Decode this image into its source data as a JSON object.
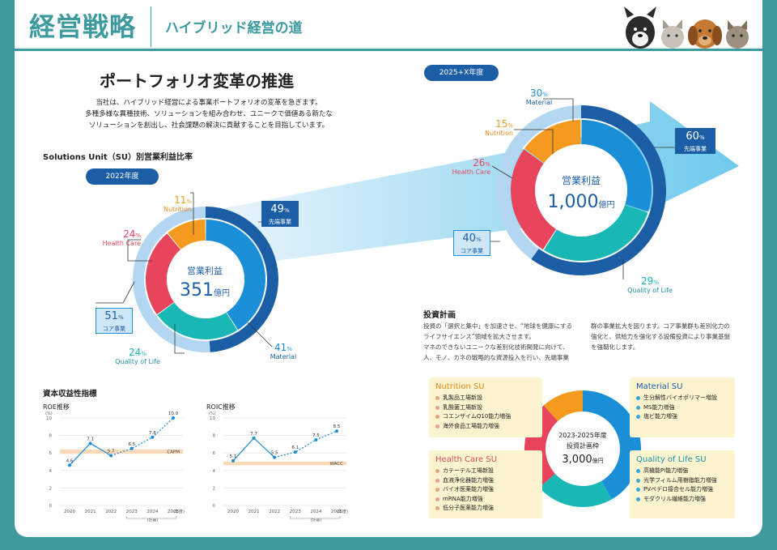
{
  "header": {
    "title": "経営戦略",
    "subtitle": "ハイブリッド経営の道"
  },
  "heading": "ポートフォリオ変革の推進",
  "intro": [
    "当社は、ハイブリッド経営による事業ポートフォリオの変革を急ぎます。",
    "多種多様な異種技術、ソリューションを組み合わせ、ユニークで価値ある新たな",
    "ソリューションを創出し、社会課題の解決に貢献することを目指しています。"
  ],
  "su_section_title": "Solutions Unit（SU）別営業利益比率",
  "colors": {
    "orange": "#f39a1f",
    "red": "#e8455c",
    "blue": "#1a8fd8",
    "teal": "#19b8b4",
    "navy": "#1c5ea6",
    "light": "#b3d7f1",
    "accent": "#3d9ba0"
  },
  "donut_2022": {
    "year_label": "2022年度",
    "center_title": "営業利益",
    "center_value": "351",
    "center_unit": "億円",
    "segments": [
      {
        "name": "先端事業",
        "value": 49,
        "pct": "49",
        "unit": "%"
      },
      {
        "name": "Material",
        "value": 41,
        "pct": "41",
        "unit": "%"
      },
      {
        "name": "Nutrition",
        "value": 11,
        "pct": "11",
        "unit": "%"
      },
      {
        "name": "Health Care",
        "value": 24,
        "pct": "24",
        "unit": "%"
      },
      {
        "name": "Quality of Life",
        "value": 24,
        "pct": "24",
        "unit": "%"
      },
      {
        "name": "コア事業",
        "value": 51,
        "pct": "51",
        "unit": "%"
      }
    ]
  },
  "donut_future": {
    "year_label": "2025+X年度",
    "center_title": "営業利益",
    "center_value": "1,000",
    "center_unit": "億円",
    "segments": [
      {
        "name": "Material",
        "value": 30,
        "pct": "30",
        "unit": "%"
      },
      {
        "name": "Nutrition",
        "value": 15,
        "pct": "15",
        "unit": "%"
      },
      {
        "name": "Health Care",
        "value": 26,
        "pct": "26",
        "unit": "%"
      },
      {
        "name": "Quality of Life",
        "value": 29,
        "pct": "29",
        "unit": "%"
      },
      {
        "name": "先端事業",
        "value": 60,
        "pct": "60",
        "unit": "%"
      },
      {
        "name": "コア事業",
        "value": 40,
        "pct": "40",
        "unit": "%"
      }
    ]
  },
  "investment": {
    "title": "投資計画",
    "text_left": [
      "投資の「選択と集中」を加速させ、“地球を健康にする",
      "ライフサイエンス”領域を拡大させます。",
      "マネのできないユニークな差別化技術開発に向けて、",
      "人、モノ、カネの戦略的な資源投入を行い、先端事業"
    ],
    "text_right": [
      "群の事業拡大を図ります。コア事業群も差別化力の",
      "強化と、供給力を強化する設備投資により事業基盤",
      "を強靭化します。"
    ],
    "center_line1": "2023-2025年度",
    "center_line2": "投資計画枠",
    "center_value": "3,000",
    "center_unit": "億円",
    "cards": {
      "nutrition": {
        "title": "Nutrition SU",
        "items": [
          "乳製品工場新設",
          "乳酸菌工場新設",
          "コエンザイムQ10能力増強",
          "海外食品工場能力増強"
        ]
      },
      "material": {
        "title": "Material SU",
        "items": [
          "生分解性バイオポリマー増設",
          "MS能力増強",
          "塩ビ能力増強"
        ]
      },
      "health": {
        "title": "Health Care SU",
        "items": [
          "カテーテル工場新設",
          "血液浄化器能力増強",
          "バイオ医薬能力増強",
          "mRNA能力増強",
          "低分子医薬能力増強"
        ]
      },
      "qol": {
        "title": "Quality of Life SU",
        "items": [
          "高機能PI能力増強",
          "光学フィルム用樹脂能力増強",
          "PVペデロ接合セル能力増強",
          "モダクリル繊維能力増強"
        ]
      }
    }
  },
  "kpi_title": "資本収益性指標",
  "chart_data": [
    {
      "type": "line",
      "title": "ROE推移",
      "ylabel": "(%)",
      "xunit": "(年度)",
      "x": [
        "2020",
        "2021",
        "2022",
        "2023",
        "2024",
        "2025"
      ],
      "values": [
        4.6,
        7.1,
        5.7,
        6.5,
        7.8,
        10.0
      ],
      "labels": [
        "4.6",
        "7.1",
        "5.7",
        "6.5",
        "7.8",
        "10.0"
      ],
      "plan_label": "(計画)",
      "ylim": [
        0,
        10
      ],
      "yticks": [
        "0",
        "2",
        "4",
        "6",
        "8",
        "10"
      ],
      "band_label": "CAPM",
      "band": [
        5.9,
        6.4
      ]
    },
    {
      "type": "line",
      "title": "ROIC推移",
      "ylabel": "(%)",
      "xunit": "(年度)",
      "x": [
        "2020",
        "2021",
        "2022",
        "2023",
        "2024",
        "2025"
      ],
      "values": [
        5.1,
        7.7,
        5.5,
        6.1,
        7.5,
        8.5
      ],
      "labels": [
        "5.1",
        "7.7",
        "5.5",
        "6.1",
        "7.5",
        "8.5"
      ],
      "plan_label": "(計画)",
      "ylim": [
        0,
        10
      ],
      "yticks": [
        "0",
        "2",
        "4",
        "6",
        "8",
        "10"
      ],
      "band_label": "WACC",
      "band": [
        4.6,
        5.0
      ]
    }
  ]
}
